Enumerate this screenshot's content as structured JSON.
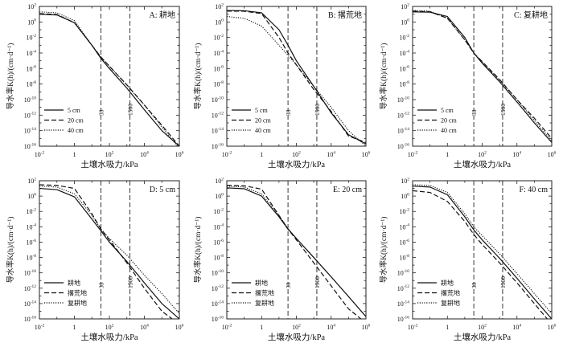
{
  "chart_data": [
    {
      "type": "line",
      "x_scale": "log",
      "y_scale": "log",
      "xlim": [
        0.01,
        1000000
      ],
      "ylim": [
        1e-16,
        100
      ],
      "xlabel": "土壤水吸力/kPa",
      "ylabel": "导水率K(h)/(cm·d⁻¹)",
      "panel_label": "A: 耕地",
      "reference_lines": [
        {
          "x": 33,
          "label": "33"
        },
        {
          "x": 1500,
          "label": "1500"
        }
      ],
      "legend_position": "lower-left",
      "series": [
        {
          "name": "5 cm",
          "style": "solid",
          "x": [
            0.01,
            0.1,
            1,
            10,
            33,
            100,
            1000,
            10000,
            100000,
            1000000
          ],
          "y": [
            10,
            8,
            0.8,
            0.001,
            2e-05,
            1e-06,
            3e-09,
            5e-12,
            1e-14,
            1e-16
          ]
        },
        {
          "name": "20 cm",
          "style": "dashed",
          "x": [
            0.01,
            0.1,
            1,
            10,
            33,
            100,
            1000,
            10000,
            100000,
            1000000
          ],
          "y": [
            12,
            9,
            0.8,
            0.001,
            3e-05,
            2e-06,
            8e-09,
            2e-11,
            5e-14,
            1e-16
          ]
        },
        {
          "name": "40 cm",
          "style": "dotted",
          "x": [
            0.01,
            0.1,
            1,
            10,
            33,
            100,
            1000,
            10000,
            100000,
            1000000
          ],
          "y": [
            20,
            15,
            1.5,
            0.001,
            3e-05,
            2e-06,
            7e-09,
            2e-11,
            3e-14,
            5e-17
          ]
        }
      ]
    },
    {
      "type": "line",
      "x_scale": "log",
      "y_scale": "log",
      "xlim": [
        0.01,
        1000000
      ],
      "ylim": [
        1e-16,
        100
      ],
      "xlabel": "土壤水吸力/kPa",
      "ylabel": "导水率K(h)/(cm·d⁻¹)",
      "panel_label": "B: 撂荒地",
      "reference_lines": [
        {
          "x": 33,
          "label": "33"
        },
        {
          "x": 1500,
          "label": "1500"
        }
      ],
      "legend_position": "lower-left",
      "series": [
        {
          "name": "5 cm",
          "style": "solid",
          "x": [
            0.01,
            0.1,
            1,
            10,
            33,
            100,
            1000,
            10000,
            100000,
            1000000
          ],
          "y": [
            30,
            28,
            15,
            0.1,
            0.001,
            1e-05,
            5e-09,
            2e-12,
            3e-15,
            2e-16
          ]
        },
        {
          "name": "20 cm",
          "style": "dashed",
          "x": [
            0.01,
            0.1,
            1,
            10,
            33,
            100,
            1000,
            10000,
            100000,
            1000000
          ],
          "y": [
            25,
            24,
            12,
            0.01,
            0.0001,
            3e-06,
            2e-09,
            3e-12,
            2e-15,
            3e-16
          ]
        },
        {
          "name": "40 cm",
          "style": "dotted",
          "x": [
            0.01,
            0.1,
            1,
            10,
            33,
            100,
            1000,
            10000,
            100000,
            1000000
          ],
          "y": [
            5,
            3,
            0.3,
            0.001,
            5e-05,
            3e-06,
            5e-09,
            1e-11,
            1e-14,
            1e-16
          ]
        }
      ]
    },
    {
      "type": "line",
      "x_scale": "log",
      "y_scale": "log",
      "xlim": [
        0.01,
        1000000
      ],
      "ylim": [
        1e-16,
        100
      ],
      "xlabel": "土壤水吸力/kPa",
      "ylabel": "导水率K(h)/(cm·d⁻¹)",
      "panel_label": "C: 复耕地",
      "reference_lines": [
        {
          "x": 33,
          "label": "33"
        },
        {
          "x": 1500,
          "label": "1500"
        }
      ],
      "legend_position": "lower-left",
      "series": [
        {
          "name": "5 cm",
          "style": "solid",
          "x": [
            0.01,
            0.1,
            1,
            10,
            33,
            100,
            1000,
            10000,
            100000,
            1000000
          ],
          "y": [
            20,
            18,
            5,
            0.01,
            0.0001,
            5e-06,
            2e-08,
            5e-11,
            1e-13,
            3e-16
          ]
        },
        {
          "name": "20 cm",
          "style": "dashed",
          "x": [
            0.01,
            0.1,
            1,
            10,
            33,
            100,
            1000,
            10000,
            100000,
            1000000
          ],
          "y": [
            25,
            20,
            3,
            0.005,
            0.0001,
            8e-06,
            4e-08,
            1e-10,
            4e-13,
            1e-15
          ]
        },
        {
          "name": "40 cm",
          "style": "dotted",
          "x": [
            0.01,
            0.1,
            1,
            10,
            33,
            100,
            1000,
            10000,
            100000,
            1000000
          ],
          "y": [
            30,
            25,
            3,
            0.005,
            0.0001,
            7e-06,
            3e-08,
            1e-10,
            2e-13,
            5e-16
          ]
        }
      ]
    },
    {
      "type": "line",
      "x_scale": "log",
      "y_scale": "log",
      "xlim": [
        0.01,
        1000000
      ],
      "ylim": [
        1e-16,
        100
      ],
      "xlabel": "土壤水吸力/kPa",
      "ylabel": "导水率K(h)/(cm·d⁻¹)",
      "panel_label": "D: 5 cm",
      "reference_lines": [
        {
          "x": 33,
          "label": "33"
        },
        {
          "x": 1500,
          "label": "1500"
        }
      ],
      "legend_position": "lower-left",
      "series": [
        {
          "name": "耕地",
          "style": "solid",
          "x": [
            0.01,
            0.1,
            1,
            10,
            33,
            100,
            1000,
            10000,
            100000,
            1000000
          ],
          "y": [
            10,
            7,
            0.8,
            0.001,
            3e-05,
            1e-06,
            3e-09,
            5e-12,
            1e-14,
            1e-16
          ]
        },
        {
          "name": "撂荒地",
          "style": "dashed",
          "x": [
            0.01,
            0.1,
            1,
            10,
            33,
            100,
            1000,
            10000,
            100000,
            1000000
          ],
          "y": [
            30,
            25,
            10,
            0.005,
            5e-05,
            2e-06,
            2e-09,
            1e-12,
            1e-15,
            2e-17
          ]
        },
        {
          "name": "复耕地",
          "style": "dotted",
          "x": [
            0.01,
            0.1,
            1,
            10,
            33,
            100,
            1000,
            10000,
            100000,
            1000000
          ],
          "y": [
            20,
            15,
            2,
            0.003,
            5e-05,
            3e-06,
            2e-08,
            5e-11,
            2e-13,
            5e-16
          ]
        }
      ]
    },
    {
      "type": "line",
      "x_scale": "log",
      "y_scale": "log",
      "xlim": [
        0.01,
        1000000
      ],
      "ylim": [
        1e-16,
        100
      ],
      "xlabel": "土壤水吸力/kPa",
      "ylabel": "导水率K(h)/(cm·d⁻¹)",
      "panel_label": "E: 20 cm",
      "reference_lines": [
        {
          "x": 33,
          "label": "33"
        },
        {
          "x": 1500,
          "label": "1500"
        }
      ],
      "legend_position": "lower-left",
      "series": [
        {
          "name": "耕地",
          "style": "solid",
          "x": [
            0.01,
            0.1,
            1,
            10,
            33,
            100,
            1000,
            10000,
            100000,
            1000000
          ],
          "y": [
            12,
            9,
            1,
            0.002,
            5e-05,
            3e-06,
            1e-08,
            3e-11,
            8e-14,
            2e-16
          ]
        },
        {
          "name": "撂荒地",
          "style": "dashed",
          "x": [
            0.01,
            0.1,
            1,
            10,
            33,
            100,
            1000,
            10000,
            100000,
            1000000
          ],
          "y": [
            25,
            22,
            8,
            0.003,
            5e-05,
            2e-06,
            2e-09,
            2e-12,
            2e-15,
            3e-17
          ]
        },
        {
          "name": "复耕地",
          "style": "dotted",
          "x": [
            0.01,
            0.1,
            1,
            10,
            33,
            100,
            1000,
            10000,
            100000,
            1000000
          ],
          "y": [
            20,
            15,
            2,
            0.003,
            6e-05,
            3e-06,
            1e-08,
            3e-11,
            8e-14,
            2e-16
          ]
        }
      ]
    },
    {
      "type": "line",
      "x_scale": "log",
      "y_scale": "log",
      "xlim": [
        0.01,
        1000000
      ],
      "ylim": [
        1e-16,
        100
      ],
      "xlabel": "土壤水吸力/kPa",
      "ylabel": "导水率K(h)/(cm·d⁻¹)",
      "panel_label": "F: 40 cm",
      "reference_lines": [
        {
          "x": 33,
          "label": "33"
        },
        {
          "x": 1500,
          "label": "1500"
        }
      ],
      "legend_position": "lower-left",
      "series": [
        {
          "name": "耕地",
          "style": "solid",
          "x": [
            0.01,
            0.1,
            1,
            10,
            33,
            100,
            1000,
            10000,
            100000,
            1000000
          ],
          "y": [
            20,
            15,
            1.5,
            0.002,
            4e-05,
            2e-06,
            8e-09,
            2e-11,
            4e-14,
            1e-16
          ]
        },
        {
          "name": "撂荒地",
          "style": "dashed",
          "x": [
            0.01,
            0.1,
            1,
            10,
            33,
            100,
            1000,
            10000,
            100000,
            1000000
          ],
          "y": [
            5,
            3,
            0.2,
            0.0005,
            1e-05,
            5e-07,
            2e-09,
            5e-12,
            1e-14,
            2e-17
          ]
        },
        {
          "name": "复耕地",
          "style": "dotted",
          "x": [
            0.01,
            0.1,
            1,
            10,
            33,
            100,
            1000,
            10000,
            100000,
            1000000
          ],
          "y": [
            30,
            25,
            3,
            0.005,
            0.0001,
            7e-06,
            3e-08,
            8e-11,
            2e-13,
            5e-16
          ]
        }
      ]
    }
  ]
}
